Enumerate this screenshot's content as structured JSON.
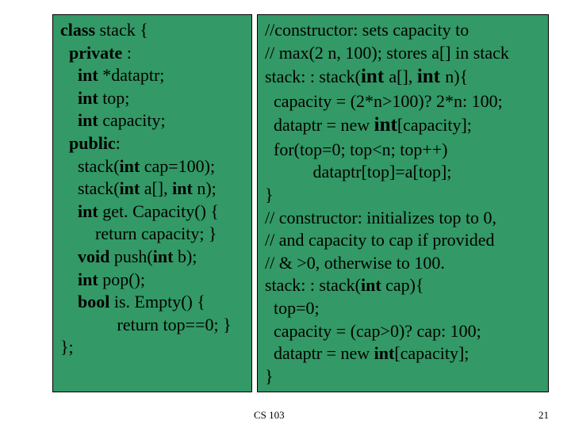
{
  "left": {
    "l1a": "class",
    "l1b": " stack {",
    "l2a": "  private",
    "l2b": " :",
    "l3a": "    int",
    "l3b": " *dataptr;",
    "l4a": "    int",
    "l4b": " top;",
    "l5a": "    int",
    "l5b": " capacity;",
    "l6a": "  public",
    "l6b": ":",
    "l7a": "    stack(",
    "l7b": "int",
    "l7c": " cap=100);",
    "l8a": "    stack(",
    "l8b": "int",
    "l8c": " a[], ",
    "l8d": "int",
    "l8e": " n);",
    "l9a": "    int",
    "l9b": " get. Capacity() {",
    "l10": "        return capacity; }",
    "l11a": "    void",
    "l11b": " push(",
    "l11c": "int",
    "l11d": " b);",
    "l12a": "    int",
    "l12b": " pop();",
    "l13a": "    bool",
    "l13b": " is. Empty() {",
    "l14": "             return top==0; }",
    "l15": "};"
  },
  "right": {
    "r1": "//constructor: sets capacity to",
    "r2": "// max(2 n, 100); stores a[] in stack",
    "r3a": "stack: : stack(",
    "r3b": "int ",
    "r3c": "a[], ",
    "r3d": "int ",
    "r3e": "n){",
    "r4": "  capacity = (2*n>100)? 2*n: 100;",
    "r5a": "  dataptr = new ",
    "r5b": "int",
    "r5c": "[capacity];",
    "r6": "  for(top=0; top<n; top++)",
    "r7": "           dataptr[top]=a[top];",
    "r8": "}",
    "r9": "// constructor: initializes top to 0,",
    "r10": "// and capacity to cap if provided",
    "r11": "// & >0, otherwise to 100.",
    "r12a": "stack: : stack(",
    "r12b": "int",
    "r12c": " cap){",
    "r13": "  top=0;",
    "r14": "  capacity = (cap>0)? cap: 100;",
    "r15a": "  dataptr = new ",
    "r15b": "int",
    "r15c": "[capacity];",
    "r16": "}"
  },
  "footer": {
    "course": "CS 103",
    "page": "21"
  },
  "colors": {
    "box_bg": "#339966",
    "box_border": "#000000",
    "text": "#000000",
    "page_bg": "#ffffff"
  }
}
